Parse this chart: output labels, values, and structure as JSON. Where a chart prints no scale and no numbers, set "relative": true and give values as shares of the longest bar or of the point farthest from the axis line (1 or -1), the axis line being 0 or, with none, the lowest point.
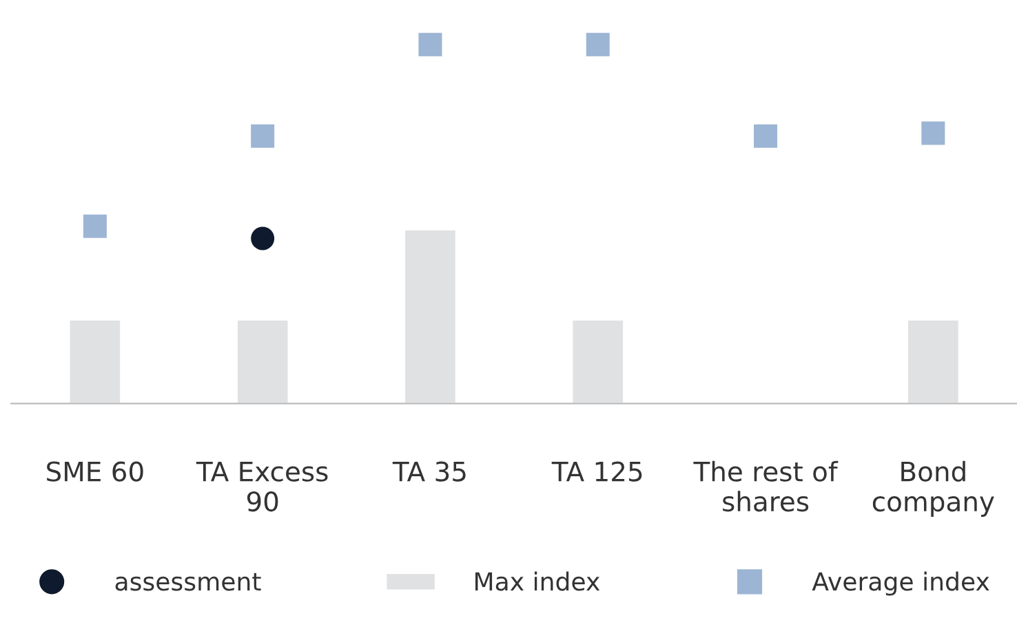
{
  "chart_data": {
    "type": "bar",
    "relative": true,
    "categories": [
      "SME 60",
      "TA Excess 90",
      "TA 35",
      "TA 125",
      "The rest of shares",
      "Bond company"
    ],
    "series": [
      {
        "name": "assessment",
        "type": "scatter",
        "marker": "circle",
        "color": "#0f1a2e",
        "values": [
          null,
          0.46,
          null,
          null,
          null,
          null
        ]
      },
      {
        "name": "Max index",
        "color": "#e0e1e3",
        "values": [
          0.234,
          0.234,
          0.485,
          0.234,
          null,
          0.234
        ]
      },
      {
        "name": "Average index",
        "type": "scatter",
        "marker": "square",
        "color": "#9db5d4",
        "values": [
          0.494,
          0.745,
          1,
          1,
          0.745,
          0.753
        ]
      }
    ],
    "legend": "bottom",
    "grid": false
  }
}
